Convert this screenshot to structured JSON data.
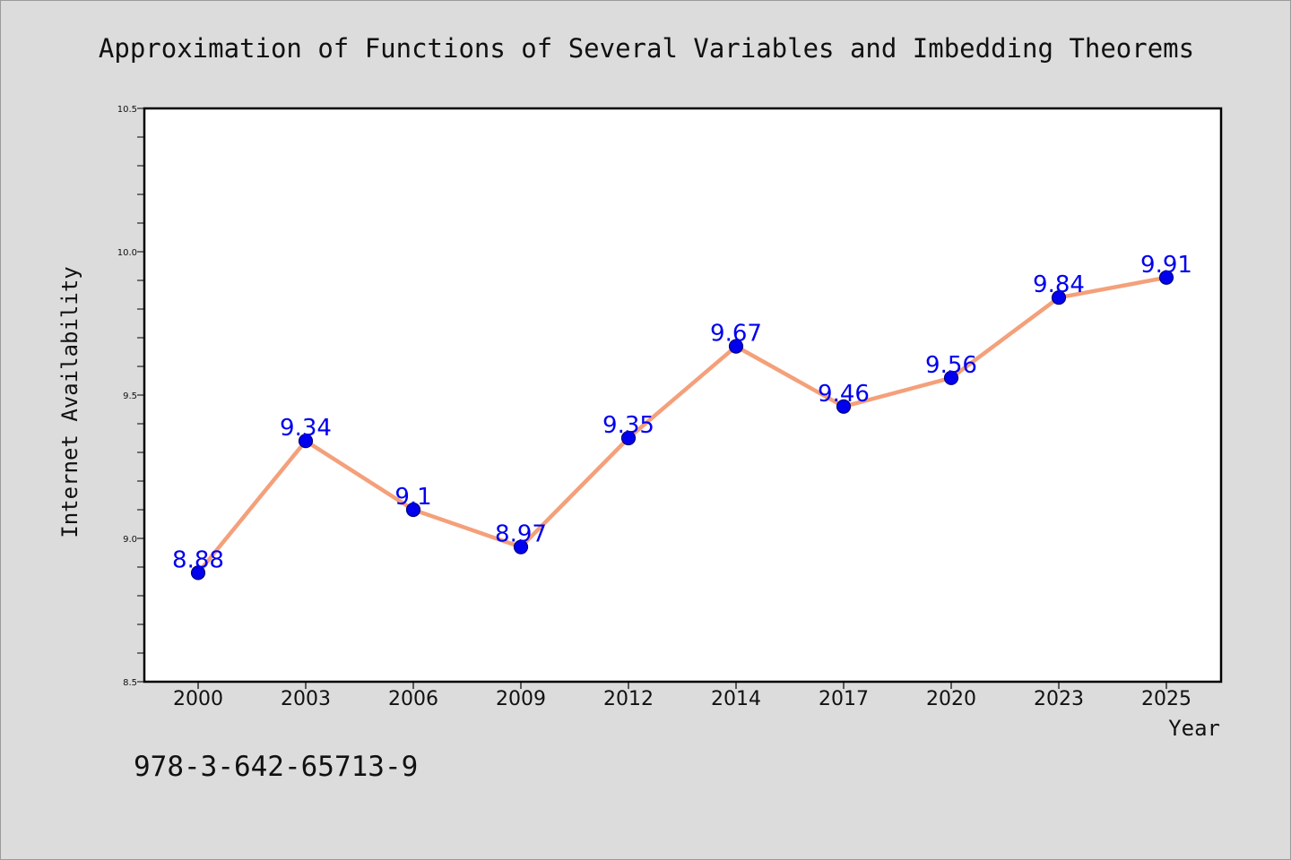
{
  "chart_data": {
    "type": "line",
    "title": "Approximation of Functions of Several Variables and Imbedding Theorems",
    "xlabel": "Year",
    "ylabel": "Internet Availability",
    "categories": [
      "2000",
      "2003",
      "2006",
      "2009",
      "2012",
      "2014",
      "2017",
      "2020",
      "2023",
      "2025"
    ],
    "series": [
      {
        "values": [
          8.88,
          9.34,
          9.1,
          8.97,
          9.35,
          9.67,
          9.46,
          9.56,
          9.84,
          9.91
        ],
        "labels": [
          "8.88",
          "9.34",
          "9.1",
          "8.97",
          "9.35",
          "9.67",
          "9.46",
          "9.56",
          "9.84",
          "9.91"
        ]
      }
    ],
    "ylim": [
      8.5,
      10.5
    ],
    "yticks": [
      "8.5",
      "9.0",
      "9.5",
      "10.0",
      "10.5"
    ],
    "ytick_values": [
      8.5,
      9.0,
      9.5,
      10.0,
      10.5
    ],
    "y_minor_step": 0.1,
    "grid": false,
    "legend": "none",
    "colors": {
      "line": "#f4a07a",
      "marker": "#0000ee",
      "marker_edge": "#00007a",
      "data_label": "#0000ee",
      "plot_background": "#ffffff",
      "figure_background": "#dcdcdc"
    }
  },
  "footer": {
    "isbn": "978-3-642-65713-9"
  }
}
